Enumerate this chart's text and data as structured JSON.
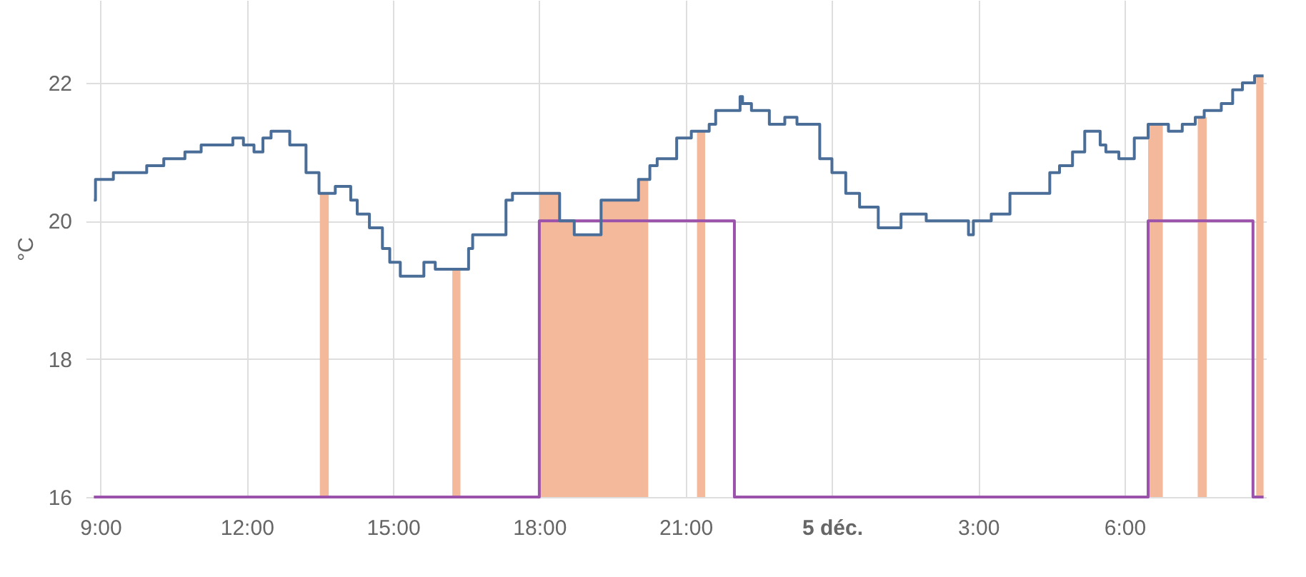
{
  "chart_data": {
    "type": "step",
    "ylabel": "°C",
    "xlim": [
      "--12-04T08:42",
      "--12-05T08:54"
    ],
    "ylim": [
      16,
      23.2
    ],
    "xticks": [
      {
        "value": "--12-04T09:00",
        "label": "9:00"
      },
      {
        "value": "--12-04T12:00",
        "label": "12:00"
      },
      {
        "value": "--12-04T15:00",
        "label": "15:00"
      },
      {
        "value": "--12-04T18:00",
        "label": "18:00"
      },
      {
        "value": "--12-04T21:00",
        "label": "21:00"
      },
      {
        "value": "--12-05T00:00",
        "label": "5 déc."
      },
      {
        "value": "--12-05T03:00",
        "label": "3:00"
      },
      {
        "value": "--12-05T06:00",
        "label": "6:00"
      }
    ],
    "yticks": [
      16,
      18,
      20,
      22
    ],
    "grid": true,
    "series": [
      {
        "type": "area",
        "color": "#f4b99a",
        "x": [
          "--12-04T13:30",
          "--12-04T13:41",
          "--12-04T16:13",
          "--12-04T16:23",
          "--12-04T18:00",
          "--12-04T18:25",
          "--12-04T18:43",
          "--12-04T19:16",
          "--12-04T20:02",
          "--12-04T20:14",
          "--12-04T21:14",
          "--12-04T21:24",
          "--12-05T06:29",
          "--12-05T06:47",
          "--12-05T07:30",
          "--12-05T07:41",
          "--12-05T08:42",
          "--12-05T08:51"
        ],
        "values": [
          20.4,
          16,
          19.3,
          16,
          20.4,
          20.0,
          19.8,
          20.3,
          20.6,
          16,
          21.3,
          16,
          21.4,
          16,
          21.5,
          16,
          22.1,
          22.1
        ]
      },
      {
        "type": "step",
        "color": "#9b52aa",
        "x": [
          "--12-04T08:52",
          "--12-04T18:00",
          "--12-04T22:00",
          "--12-05T06:29",
          "--12-05T08:38",
          "--12-05T08:51"
        ],
        "values": [
          16,
          20,
          16,
          20,
          16,
          16
        ]
      },
      {
        "color": "#4a6e98",
        "x": [
          "--12-04T08:52",
          "--12-04T08:54",
          "--12-04T09:16",
          "--12-04T09:57",
          "--12-04T10:18",
          "--12-04T10:44",
          "--12-04T11:04",
          "--12-04T11:43",
          "--12-04T11:56",
          "--12-04T12:09",
          "--12-04T12:20",
          "--12-04T12:30",
          "--12-04T12:53",
          "--12-04T13:13",
          "--12-04T13:29",
          "--12-04T13:49",
          "--12-04T14:08",
          "--12-04T14:16",
          "--12-04T14:31",
          "--12-04T14:47",
          "--12-04T14:56",
          "--12-04T15:09",
          "--12-04T15:38",
          "--12-04T15:52",
          "--12-04T16:33",
          "--12-04T16:38",
          "--12-04T17:19",
          "--12-04T17:27",
          "--12-04T18:25",
          "--12-04T18:43",
          "--12-04T19:16",
          "--12-04T20:02",
          "--12-04T20:16",
          "--12-04T20:25",
          "--12-04T20:49",
          "--12-04T21:07",
          "--12-04T21:29",
          "--12-04T21:37",
          "--12-04T22:07",
          "--12-04T22:10",
          "--12-04T22:21",
          "--12-04T22:43",
          "--12-04T23:02",
          "--12-04T23:17",
          "--12-04T23:45",
          "--12-05T00:00",
          "--12-05T00:17",
          "--12-05T00:34",
          "--12-05T00:57",
          "--12-05T01:25",
          "--12-05T01:56",
          "--12-05T02:48",
          "--12-05T02:54",
          "--12-05T03:16",
          "--12-05T03:39",
          "--12-05T04:28",
          "--12-05T04:40",
          "--12-05T04:56",
          "--12-05T05:11",
          "--12-05T05:30",
          "--12-05T05:37",
          "--12-05T05:53",
          "--12-05T06:12",
          "--12-05T06:29",
          "--12-05T06:54",
          "--12-05T07:11",
          "--12-05T07:27",
          "--12-05T07:38",
          "--12-05T07:59",
          "--12-05T08:13",
          "--12-05T08:25",
          "--12-05T08:40",
          "--12-05T08:51"
        ],
        "values": [
          20.3,
          20.6,
          20.7,
          20.8,
          20.9,
          21.0,
          21.1,
          21.2,
          21.1,
          21.0,
          21.2,
          21.3,
          21.1,
          20.7,
          20.4,
          20.5,
          20.3,
          20.1,
          19.9,
          19.6,
          19.4,
          19.2,
          19.4,
          19.3,
          19.6,
          19.8,
          20.3,
          20.4,
          20.0,
          19.8,
          20.3,
          20.6,
          20.8,
          20.9,
          21.2,
          21.3,
          21.4,
          21.6,
          21.8,
          21.7,
          21.6,
          21.4,
          21.5,
          21.4,
          20.9,
          20.7,
          20.4,
          20.2,
          19.9,
          20.1,
          20.0,
          19.8,
          20.0,
          20.1,
          20.4,
          20.7,
          20.8,
          21.0,
          21.3,
          21.1,
          21.0,
          20.9,
          21.2,
          21.4,
          21.3,
          21.4,
          21.5,
          21.6,
          21.7,
          21.9,
          22.0,
          22.1,
          22.1
        ]
      }
    ]
  }
}
